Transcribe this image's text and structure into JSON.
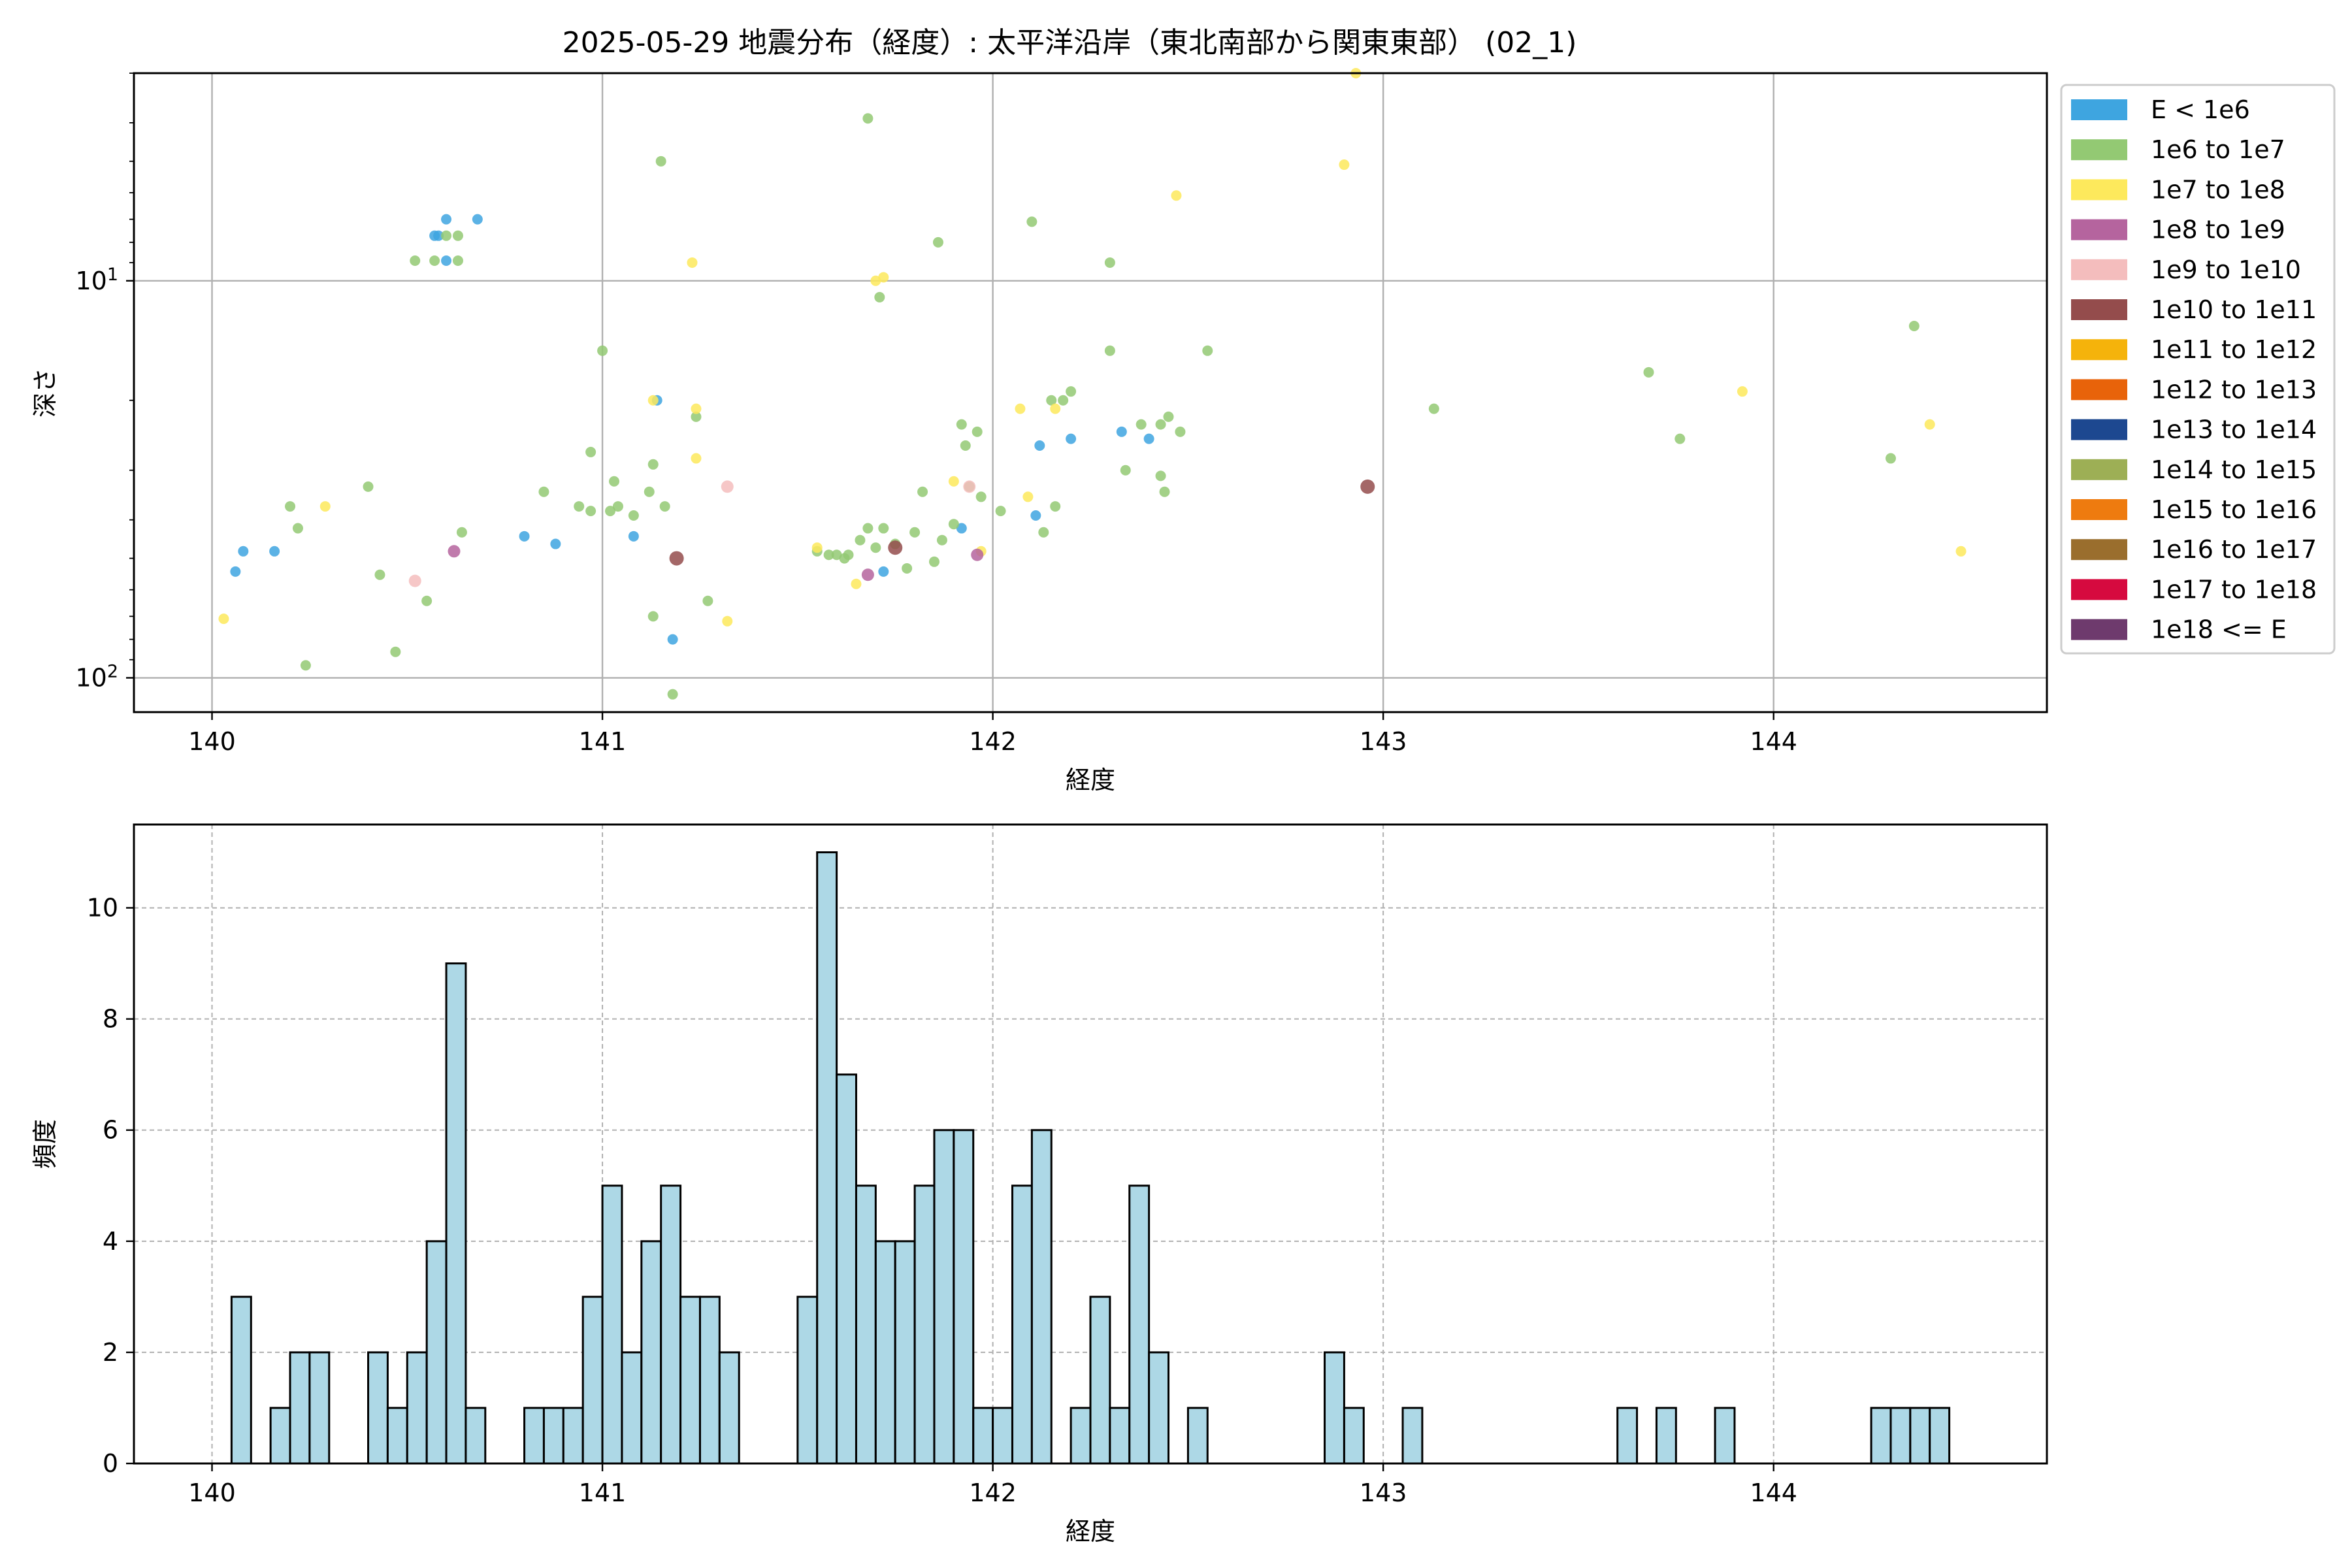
{
  "title": "2025-05-29 地震分布（経度）: 太平洋沿岸（東北南部から関東東部） (02_1)",
  "chart_data": [
    {
      "type": "scatter",
      "xlabel": "経度",
      "ylabel": "深さ",
      "xlim": [
        139.8,
        144.7
      ],
      "ylim": [
        122,
        3
      ],
      "y_scale": "log",
      "y_inverted": true,
      "xticks": [
        {
          "value": 140,
          "label": "140"
        },
        {
          "value": 141,
          "label": "141"
        },
        {
          "value": 142,
          "label": "142"
        },
        {
          "value": 143,
          "label": "143"
        },
        {
          "value": 144,
          "label": "144"
        }
      ],
      "yticks": [
        {
          "value": 10,
          "label_base": "10",
          "label_exp": "1"
        },
        {
          "value": 100,
          "label_base": "10",
          "label_exp": "2"
        }
      ],
      "grid": true,
      "legend_position": "outside-right",
      "legend": [
        {
          "label": "E < 1e6",
          "color": "#3ea5e0"
        },
        {
          "label": "1e6 to 1e7",
          "color": "#93c973"
        },
        {
          "label": "1e7 to 1e8",
          "color": "#fde95c"
        },
        {
          "label": "1e8 to 1e9",
          "color": "#b5649e"
        },
        {
          "label": "1e9 to 1e10",
          "color": "#f4bdbd"
        },
        {
          "label": "1e10 to 1e11",
          "color": "#944c4c"
        },
        {
          "label": "1e11 to 1e12",
          "color": "#f5b30b"
        },
        {
          "label": "1e12 to 1e13",
          "color": "#e8630a"
        },
        {
          "label": "1e13 to 1e14",
          "color": "#1d4890"
        },
        {
          "label": "1e14 to 1e15",
          "color": "#9daf55"
        },
        {
          "label": "1e15 to 1e16",
          "color": "#ee7b0f"
        },
        {
          "label": "1e16 to 1e17",
          "color": "#9a6e2d"
        },
        {
          "label": "1e17 to 1e18",
          "color": "#d60a3f"
        },
        {
          "label": "1e18 <= E",
          "color": "#6e3a6d"
        }
      ],
      "points": [
        {
          "x": 140.58,
          "y": 7.7,
          "c": 0
        },
        {
          "x": 140.6,
          "y": 7.0,
          "c": 0
        },
        {
          "x": 140.57,
          "y": 7.7,
          "c": 0
        },
        {
          "x": 140.6,
          "y": 8.9,
          "c": 0
        },
        {
          "x": 140.68,
          "y": 7.0,
          "c": 0
        },
        {
          "x": 140.06,
          "y": 54,
          "c": 0
        },
        {
          "x": 140.08,
          "y": 48,
          "c": 0
        },
        {
          "x": 140.16,
          "y": 48,
          "c": 0
        },
        {
          "x": 140.8,
          "y": 44,
          "c": 0
        },
        {
          "x": 140.88,
          "y": 46,
          "c": 0
        },
        {
          "x": 141.08,
          "y": 44,
          "c": 0
        },
        {
          "x": 141.14,
          "y": 20,
          "c": 0
        },
        {
          "x": 141.18,
          "y": 80,
          "c": 0
        },
        {
          "x": 141.92,
          "y": 42,
          "c": 0
        },
        {
          "x": 141.72,
          "y": 54,
          "c": 0
        },
        {
          "x": 142.11,
          "y": 39,
          "c": 0
        },
        {
          "x": 142.12,
          "y": 26,
          "c": 0
        },
        {
          "x": 142.2,
          "y": 25,
          "c": 0
        },
        {
          "x": 142.33,
          "y": 24,
          "c": 0
        },
        {
          "x": 142.4,
          "y": 25,
          "c": 0
        },
        {
          "x": 140.52,
          "y": 8.9,
          "c": 1
        },
        {
          "x": 140.57,
          "y": 8.9,
          "c": 1
        },
        {
          "x": 140.6,
          "y": 7.7,
          "c": 1
        },
        {
          "x": 140.63,
          "y": 7.7,
          "c": 1
        },
        {
          "x": 140.63,
          "y": 8.9,
          "c": 1
        },
        {
          "x": 140.2,
          "y": 37,
          "c": 1
        },
        {
          "x": 140.22,
          "y": 42,
          "c": 1
        },
        {
          "x": 140.24,
          "y": 93,
          "c": 1
        },
        {
          "x": 140.4,
          "y": 33,
          "c": 1
        },
        {
          "x": 140.43,
          "y": 55,
          "c": 1
        },
        {
          "x": 140.47,
          "y": 86,
          "c": 1
        },
        {
          "x": 140.55,
          "y": 64,
          "c": 1
        },
        {
          "x": 140.64,
          "y": 43,
          "c": 1
        },
        {
          "x": 140.85,
          "y": 34,
          "c": 1
        },
        {
          "x": 140.94,
          "y": 37,
          "c": 1
        },
        {
          "x": 140.97,
          "y": 38,
          "c": 1
        },
        {
          "x": 140.97,
          "y": 27,
          "c": 1
        },
        {
          "x": 141.0,
          "y": 15,
          "c": 1
        },
        {
          "x": 141.02,
          "y": 38,
          "c": 1
        },
        {
          "x": 141.03,
          "y": 32,
          "c": 1
        },
        {
          "x": 141.04,
          "y": 37,
          "c": 1
        },
        {
          "x": 141.08,
          "y": 39,
          "c": 1
        },
        {
          "x": 141.12,
          "y": 34,
          "c": 1
        },
        {
          "x": 141.13,
          "y": 29,
          "c": 1
        },
        {
          "x": 141.13,
          "y": 70,
          "c": 1
        },
        {
          "x": 141.15,
          "y": 5.0,
          "c": 1
        },
        {
          "x": 141.16,
          "y": 37,
          "c": 1
        },
        {
          "x": 141.18,
          "y": 110,
          "c": 1
        },
        {
          "x": 141.24,
          "y": 22,
          "c": 1
        },
        {
          "x": 141.27,
          "y": 64,
          "c": 1
        },
        {
          "x": 141.55,
          "y": 48,
          "c": 1
        },
        {
          "x": 141.58,
          "y": 49,
          "c": 1
        },
        {
          "x": 141.6,
          "y": 49,
          "c": 1
        },
        {
          "x": 141.62,
          "y": 50,
          "c": 1
        },
        {
          "x": 141.63,
          "y": 49,
          "c": 1
        },
        {
          "x": 141.66,
          "y": 45,
          "c": 1
        },
        {
          "x": 141.68,
          "y": 42,
          "c": 1
        },
        {
          "x": 141.68,
          "y": 3.9,
          "c": 1
        },
        {
          "x": 141.7,
          "y": 47,
          "c": 1
        },
        {
          "x": 141.71,
          "y": 11,
          "c": 1
        },
        {
          "x": 141.72,
          "y": 42,
          "c": 1
        },
        {
          "x": 141.75,
          "y": 46,
          "c": 1
        },
        {
          "x": 141.78,
          "y": 53,
          "c": 1
        },
        {
          "x": 141.8,
          "y": 43,
          "c": 1
        },
        {
          "x": 141.82,
          "y": 34,
          "c": 1
        },
        {
          "x": 141.85,
          "y": 51,
          "c": 1
        },
        {
          "x": 141.86,
          "y": 8.0,
          "c": 1
        },
        {
          "x": 141.87,
          "y": 45,
          "c": 1
        },
        {
          "x": 141.9,
          "y": 41,
          "c": 1
        },
        {
          "x": 141.92,
          "y": 23,
          "c": 1
        },
        {
          "x": 141.93,
          "y": 26,
          "c": 1
        },
        {
          "x": 141.94,
          "y": 33,
          "c": 1
        },
        {
          "x": 141.96,
          "y": 24,
          "c": 1
        },
        {
          "x": 141.97,
          "y": 35,
          "c": 1
        },
        {
          "x": 142.02,
          "y": 38,
          "c": 1
        },
        {
          "x": 142.1,
          "y": 7.1,
          "c": 1
        },
        {
          "x": 142.13,
          "y": 43,
          "c": 1
        },
        {
          "x": 142.15,
          "y": 20,
          "c": 1
        },
        {
          "x": 142.16,
          "y": 37,
          "c": 1
        },
        {
          "x": 142.18,
          "y": 20,
          "c": 1
        },
        {
          "x": 142.2,
          "y": 19,
          "c": 1
        },
        {
          "x": 142.3,
          "y": 9.0,
          "c": 1
        },
        {
          "x": 142.3,
          "y": 15,
          "c": 1
        },
        {
          "x": 142.34,
          "y": 30,
          "c": 1
        },
        {
          "x": 142.38,
          "y": 23,
          "c": 1
        },
        {
          "x": 142.43,
          "y": 23,
          "c": 1
        },
        {
          "x": 142.43,
          "y": 31,
          "c": 1
        },
        {
          "x": 142.44,
          "y": 34,
          "c": 1
        },
        {
          "x": 142.45,
          "y": 22,
          "c": 1
        },
        {
          "x": 142.48,
          "y": 24,
          "c": 1
        },
        {
          "x": 142.55,
          "y": 15,
          "c": 1
        },
        {
          "x": 143.13,
          "y": 21,
          "c": 1
        },
        {
          "x": 143.68,
          "y": 17,
          "c": 1
        },
        {
          "x": 143.76,
          "y": 25,
          "c": 1
        },
        {
          "x": 144.3,
          "y": 28,
          "c": 1
        },
        {
          "x": 144.36,
          "y": 13,
          "c": 1
        },
        {
          "x": 140.03,
          "y": 71,
          "c": 2
        },
        {
          "x": 140.29,
          "y": 37,
          "c": 2
        },
        {
          "x": 141.13,
          "y": 20,
          "c": 2
        },
        {
          "x": 141.23,
          "y": 9.0,
          "c": 2
        },
        {
          "x": 141.24,
          "y": 21,
          "c": 2
        },
        {
          "x": 141.24,
          "y": 28,
          "c": 2
        },
        {
          "x": 141.32,
          "y": 72,
          "c": 2
        },
        {
          "x": 141.55,
          "y": 47,
          "c": 2
        },
        {
          "x": 141.65,
          "y": 58,
          "c": 2
        },
        {
          "x": 141.7,
          "y": 10,
          "c": 2
        },
        {
          "x": 141.72,
          "y": 9.8,
          "c": 2
        },
        {
          "x": 141.9,
          "y": 32,
          "c": 2
        },
        {
          "x": 141.97,
          "y": 48,
          "c": 2
        },
        {
          "x": 142.07,
          "y": 21,
          "c": 2
        },
        {
          "x": 142.09,
          "y": 35,
          "c": 2
        },
        {
          "x": 142.16,
          "y": 21,
          "c": 2
        },
        {
          "x": 142.47,
          "y": 6.1,
          "c": 2
        },
        {
          "x": 142.9,
          "y": 5.1,
          "c": 2
        },
        {
          "x": 142.93,
          "y": 3.0,
          "c": 2
        },
        {
          "x": 143.92,
          "y": 19,
          "c": 2
        },
        {
          "x": 144.4,
          "y": 23,
          "c": 2
        },
        {
          "x": 144.48,
          "y": 48,
          "c": 2
        },
        {
          "x": 140.62,
          "y": 48,
          "c": 3
        },
        {
          "x": 141.68,
          "y": 55,
          "c": 3
        },
        {
          "x": 141.96,
          "y": 49,
          "c": 3
        },
        {
          "x": 140.52,
          "y": 57,
          "c": 4
        },
        {
          "x": 141.32,
          "y": 33,
          "c": 4
        },
        {
          "x": 141.94,
          "y": 33,
          "c": 4
        },
        {
          "x": 141.19,
          "y": 50,
          "c": 5
        },
        {
          "x": 141.75,
          "y": 47,
          "c": 5
        },
        {
          "x": 142.96,
          "y": 33,
          "c": 5
        }
      ]
    },
    {
      "type": "bar",
      "xlabel": "経度",
      "ylabel": "頻度",
      "xlim": [
        139.8,
        144.7
      ],
      "ylim": [
        0,
        11.5
      ],
      "bin_width": 0.05,
      "xticks": [
        140,
        141,
        142,
        143,
        144
      ],
      "yticks": [
        0,
        2,
        4,
        6,
        8,
        10
      ],
      "grid": "dashed",
      "bar_color": "#add8e6",
      "bins": [
        {
          "x": 140.0,
          "v": 0
        },
        {
          "x": 140.05,
          "v": 3
        },
        {
          "x": 140.1,
          "v": 0
        },
        {
          "x": 140.15,
          "v": 1
        },
        {
          "x": 140.2,
          "v": 2
        },
        {
          "x": 140.25,
          "v": 2
        },
        {
          "x": 140.3,
          "v": 0
        },
        {
          "x": 140.35,
          "v": 0
        },
        {
          "x": 140.4,
          "v": 2
        },
        {
          "x": 140.45,
          "v": 1
        },
        {
          "x": 140.5,
          "v": 2
        },
        {
          "x": 140.55,
          "v": 4
        },
        {
          "x": 140.6,
          "v": 9
        },
        {
          "x": 140.65,
          "v": 1
        },
        {
          "x": 140.7,
          "v": 0
        },
        {
          "x": 140.75,
          "v": 0
        },
        {
          "x": 140.8,
          "v": 1
        },
        {
          "x": 140.85,
          "v": 1
        },
        {
          "x": 140.9,
          "v": 1
        },
        {
          "x": 140.95,
          "v": 3
        },
        {
          "x": 141.0,
          "v": 5
        },
        {
          "x": 141.05,
          "v": 2
        },
        {
          "x": 141.1,
          "v": 4
        },
        {
          "x": 141.15,
          "v": 5
        },
        {
          "x": 141.2,
          "v": 3
        },
        {
          "x": 141.25,
          "v": 3
        },
        {
          "x": 141.3,
          "v": 2
        },
        {
          "x": 141.35,
          "v": 0
        },
        {
          "x": 141.4,
          "v": 0
        },
        {
          "x": 141.45,
          "v": 0
        },
        {
          "x": 141.5,
          "v": 3
        },
        {
          "x": 141.55,
          "v": 11
        },
        {
          "x": 141.6,
          "v": 7
        },
        {
          "x": 141.65,
          "v": 5
        },
        {
          "x": 141.7,
          "v": 4
        },
        {
          "x": 141.75,
          "v": 4
        },
        {
          "x": 141.8,
          "v": 5
        },
        {
          "x": 141.85,
          "v": 6
        },
        {
          "x": 141.9,
          "v": 6
        },
        {
          "x": 141.95,
          "v": 1
        },
        {
          "x": 142.0,
          "v": 1
        },
        {
          "x": 142.05,
          "v": 5
        },
        {
          "x": 142.1,
          "v": 6
        },
        {
          "x": 142.15,
          "v": 0
        },
        {
          "x": 142.2,
          "v": 1
        },
        {
          "x": 142.25,
          "v": 3
        },
        {
          "x": 142.3,
          "v": 1
        },
        {
          "x": 142.35,
          "v": 5
        },
        {
          "x": 142.4,
          "v": 2
        },
        {
          "x": 142.45,
          "v": 0
        },
        {
          "x": 142.5,
          "v": 1
        },
        {
          "x": 142.55,
          "v": 0
        },
        {
          "x": 142.6,
          "v": 0
        },
        {
          "x": 142.65,
          "v": 0
        },
        {
          "x": 142.7,
          "v": 0
        },
        {
          "x": 142.75,
          "v": 0
        },
        {
          "x": 142.8,
          "v": 0
        },
        {
          "x": 142.85,
          "v": 2
        },
        {
          "x": 142.9,
          "v": 1
        },
        {
          "x": 142.95,
          "v": 0
        },
        {
          "x": 143.0,
          "v": 0
        },
        {
          "x": 143.05,
          "v": 1
        },
        {
          "x": 143.1,
          "v": 0
        },
        {
          "x": 143.15,
          "v": 0
        },
        {
          "x": 143.2,
          "v": 0
        },
        {
          "x": 143.25,
          "v": 0
        },
        {
          "x": 143.3,
          "v": 0
        },
        {
          "x": 143.35,
          "v": 0
        },
        {
          "x": 143.4,
          "v": 0
        },
        {
          "x": 143.45,
          "v": 0
        },
        {
          "x": 143.5,
          "v": 0
        },
        {
          "x": 143.55,
          "v": 0
        },
        {
          "x": 143.6,
          "v": 1
        },
        {
          "x": 143.65,
          "v": 0
        },
        {
          "x": 143.7,
          "v": 1
        },
        {
          "x": 143.75,
          "v": 0
        },
        {
          "x": 143.8,
          "v": 0
        },
        {
          "x": 143.85,
          "v": 1
        },
        {
          "x": 143.9,
          "v": 0
        },
        {
          "x": 143.95,
          "v": 0
        },
        {
          "x": 144.0,
          "v": 0
        },
        {
          "x": 144.05,
          "v": 0
        },
        {
          "x": 144.1,
          "v": 0
        },
        {
          "x": 144.15,
          "v": 0
        },
        {
          "x": 144.2,
          "v": 0
        },
        {
          "x": 144.25,
          "v": 1
        },
        {
          "x": 144.3,
          "v": 1
        },
        {
          "x": 144.35,
          "v": 1
        },
        {
          "x": 144.4,
          "v": 1
        }
      ]
    }
  ]
}
